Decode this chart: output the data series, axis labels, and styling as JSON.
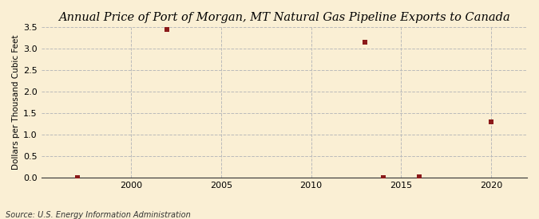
{
  "title": "Annual Price of Port of Morgan, MT Natural Gas Pipeline Exports to Canada",
  "ylabel": "Dollars per Thousand Cubic Feet",
  "source": "Source: U.S. Energy Information Administration",
  "background_color": "#faefd4",
  "data_x": [
    1997,
    2002,
    2013,
    2014,
    2016,
    2020
  ],
  "data_y": [
    0.01,
    3.45,
    3.15,
    0.01,
    0.02,
    1.3
  ],
  "marker_color": "#8b1a1a",
  "marker_size": 4,
  "xlim": [
    1995,
    2022
  ],
  "ylim": [
    0.0,
    3.5
  ],
  "yticks": [
    0.0,
    0.5,
    1.0,
    1.5,
    2.0,
    2.5,
    3.0,
    3.5
  ],
  "xticks": [
    2000,
    2005,
    2010,
    2015,
    2020
  ],
  "grid_color": "#bbbbbb",
  "title_fontsize": 10.5,
  "label_fontsize": 7.5,
  "tick_fontsize": 8,
  "source_fontsize": 7
}
